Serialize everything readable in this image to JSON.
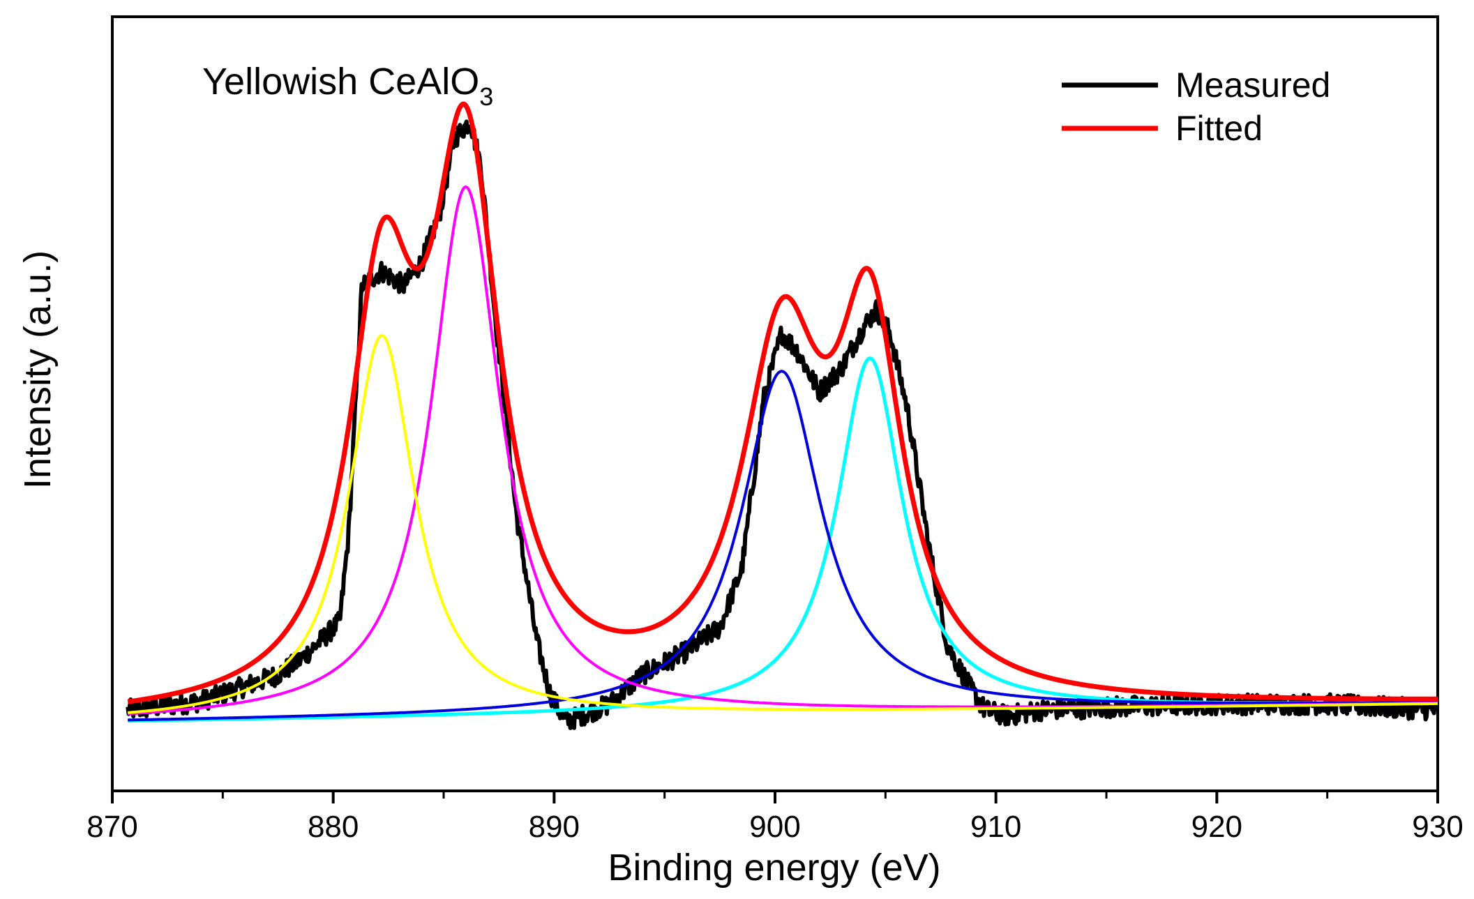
{
  "chart_data": {
    "type": "line",
    "title": "",
    "annotation": {
      "main": "Yellowish CeAlO",
      "subscript": "3"
    },
    "xlabel": "Binding energy (eV)",
    "ylabel": "Intensity (a.u.)",
    "xlim": [
      870,
      930
    ],
    "ylim": [
      0,
      1.13
    ],
    "x_ticks": [
      870,
      880,
      890,
      900,
      910,
      920,
      930
    ],
    "x_tick_labels": [
      "870",
      "880",
      "890",
      "900",
      "910",
      "920",
      "930"
    ],
    "x_minor_step": 5,
    "yticks_shown": false,
    "grid": false,
    "legend": {
      "position": "top-right",
      "entries": [
        {
          "label": "Measured",
          "color": "#000000"
        },
        {
          "label": "Fitted",
          "color": "#ff0000"
        }
      ]
    },
    "background": {
      "type": "linear",
      "x": [
        870.7,
        930
      ],
      "y": [
        0.0,
        0.03
      ]
    },
    "x_range": [
      870.7,
      930
    ],
    "series": [
      {
        "name": "Measured",
        "color": "#000000",
        "stroke_width": 6,
        "noisy": true,
        "points": [
          [
            870.7,
            0.02
          ],
          [
            872,
            0.025
          ],
          [
            874,
            0.035
          ],
          [
            876,
            0.06
          ],
          [
            877.5,
            0.08
          ],
          [
            878.5,
            0.105
          ],
          [
            879.5,
            0.14
          ],
          [
            880.3,
            0.17
          ],
          [
            880.7,
            0.32
          ],
          [
            881.3,
            0.74
          ],
          [
            882.2,
            0.765
          ],
          [
            883.2,
            0.74
          ],
          [
            884.0,
            0.78
          ],
          [
            884.8,
            0.86
          ],
          [
            885.5,
            0.99
          ],
          [
            886.2,
            1.02
          ],
          [
            886.7,
            0.94
          ],
          [
            887.3,
            0.7
          ],
          [
            888.3,
            0.35
          ],
          [
            889.2,
            0.14
          ],
          [
            889.8,
            0.05
          ],
          [
            890.5,
            0.0
          ],
          [
            891.5,
            0.015
          ],
          [
            892.5,
            0.03
          ],
          [
            894,
            0.08
          ],
          [
            896,
            0.12
          ],
          [
            897.5,
            0.16
          ],
          [
            898.5,
            0.26
          ],
          [
            899.5,
            0.55
          ],
          [
            900.3,
            0.66
          ],
          [
            901.0,
            0.63
          ],
          [
            902.0,
            0.56
          ],
          [
            903.0,
            0.6
          ],
          [
            904.0,
            0.67
          ],
          [
            904.6,
            0.7
          ],
          [
            905.2,
            0.66
          ],
          [
            906.0,
            0.53
          ],
          [
            907.0,
            0.29
          ],
          [
            907.8,
            0.13
          ],
          [
            908.8,
            0.06
          ],
          [
            909.5,
            0.02
          ],
          [
            910.5,
            0.01
          ],
          [
            912,
            0.02
          ],
          [
            915,
            0.025
          ],
          [
            920,
            0.03
          ],
          [
            925,
            0.03
          ],
          [
            930,
            0.02
          ]
        ]
      },
      {
        "name": "Fitted",
        "color": "#ff0000",
        "stroke_width": 7,
        "components": [
          "882.2 peak",
          "886.0 peak",
          "900.3 peak",
          "904.3 peak"
        ]
      },
      {
        "name": "882.2 peak",
        "color": "#ffff00",
        "stroke_width": 4,
        "shape": "lorentzian",
        "center": 882.2,
        "height": 0.65,
        "fwhm": 3.6,
        "offset_start": 0.02,
        "offset_end": 0.03
      },
      {
        "name": "886.0 peak",
        "color": "#ff00ff",
        "stroke_width": 4,
        "shape": "lorentzian",
        "center": 886.0,
        "height": 0.9,
        "fwhm": 3.8
      },
      {
        "name": "900.3 peak",
        "color": "#0000dd",
        "stroke_width": 4,
        "shape": "lorentzian",
        "center": 900.3,
        "height": 0.58,
        "fwhm": 4.4
      },
      {
        "name": "904.3 peak",
        "color": "#00ffff",
        "stroke_width": 5,
        "shape": "lorentzian",
        "center": 904.3,
        "height": 0.6,
        "fwhm": 3.6
      }
    ]
  }
}
